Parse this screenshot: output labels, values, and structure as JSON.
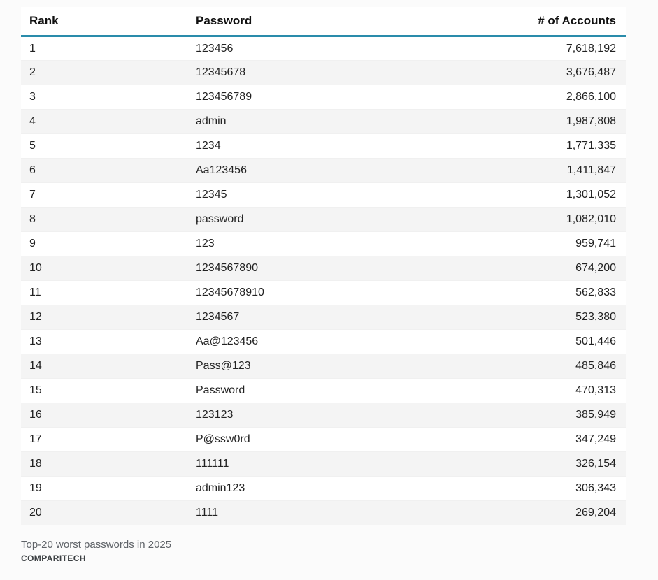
{
  "page": {
    "background_color": "#fbfbfb",
    "accent_color": "#2a8cab"
  },
  "table": {
    "columns": [
      "Rank",
      "Password",
      "# of Accounts"
    ],
    "rows": [
      [
        "1",
        "123456",
        "7,618,192"
      ],
      [
        "2",
        "12345678",
        "3,676,487"
      ],
      [
        "3",
        "123456789",
        "2,866,100"
      ],
      [
        "4",
        "admin",
        "1,987,808"
      ],
      [
        "5",
        "1234",
        "1,771,335"
      ],
      [
        "6",
        "Aa123456",
        "1,411,847"
      ],
      [
        "7",
        "12345",
        "1,301,052"
      ],
      [
        "8",
        "password",
        "1,082,010"
      ],
      [
        "9",
        "123",
        "959,741"
      ],
      [
        "10",
        "1234567890",
        "674,200"
      ],
      [
        "11",
        "12345678910",
        "562,833"
      ],
      [
        "12",
        "1234567",
        "523,380"
      ],
      [
        "13",
        "Aa@123456",
        "501,446"
      ],
      [
        "14",
        "Pass@123",
        "485,846"
      ],
      [
        "15",
        "Password",
        "470,313"
      ],
      [
        "16",
        "123123",
        "385,949"
      ],
      [
        "17",
        "P@ssw0rd",
        "347,249"
      ],
      [
        "18",
        "111111",
        "326,154"
      ],
      [
        "19",
        "admin123",
        "306,343"
      ],
      [
        "20",
        "1111",
        "269,204"
      ]
    ]
  },
  "caption": {
    "title": "Top-20 worst passwords in 2025",
    "source": "COMPARITECH"
  },
  "chart_data": {
    "type": "table",
    "title": "Top-20 worst passwords in 2025",
    "source": "COMPARITECH",
    "columns": [
      "Rank",
      "Password",
      "# of Accounts"
    ],
    "rows": [
      {
        "rank": 1,
        "password": "123456",
        "accounts": 7618192
      },
      {
        "rank": 2,
        "password": "12345678",
        "accounts": 3676487
      },
      {
        "rank": 3,
        "password": "123456789",
        "accounts": 2866100
      },
      {
        "rank": 4,
        "password": "admin",
        "accounts": 1987808
      },
      {
        "rank": 5,
        "password": "1234",
        "accounts": 1771335
      },
      {
        "rank": 6,
        "password": "Aa123456",
        "accounts": 1411847
      },
      {
        "rank": 7,
        "password": "12345",
        "accounts": 1301052
      },
      {
        "rank": 8,
        "password": "password",
        "accounts": 1082010
      },
      {
        "rank": 9,
        "password": "123",
        "accounts": 959741
      },
      {
        "rank": 10,
        "password": "1234567890",
        "accounts": 674200
      },
      {
        "rank": 11,
        "password": "12345678910",
        "accounts": 562833
      },
      {
        "rank": 12,
        "password": "1234567",
        "accounts": 523380
      },
      {
        "rank": 13,
        "password": "Aa@123456",
        "accounts": 501446
      },
      {
        "rank": 14,
        "password": "Pass@123",
        "accounts": 485846
      },
      {
        "rank": 15,
        "password": "Password",
        "accounts": 470313
      },
      {
        "rank": 16,
        "password": "123123",
        "accounts": 385949
      },
      {
        "rank": 17,
        "password": "P@ssw0rd",
        "accounts": 347249
      },
      {
        "rank": 18,
        "password": "111111",
        "accounts": 326154
      },
      {
        "rank": 19,
        "password": "admin123",
        "accounts": 306343
      },
      {
        "rank": 20,
        "password": "1111",
        "accounts": 269204
      }
    ]
  }
}
